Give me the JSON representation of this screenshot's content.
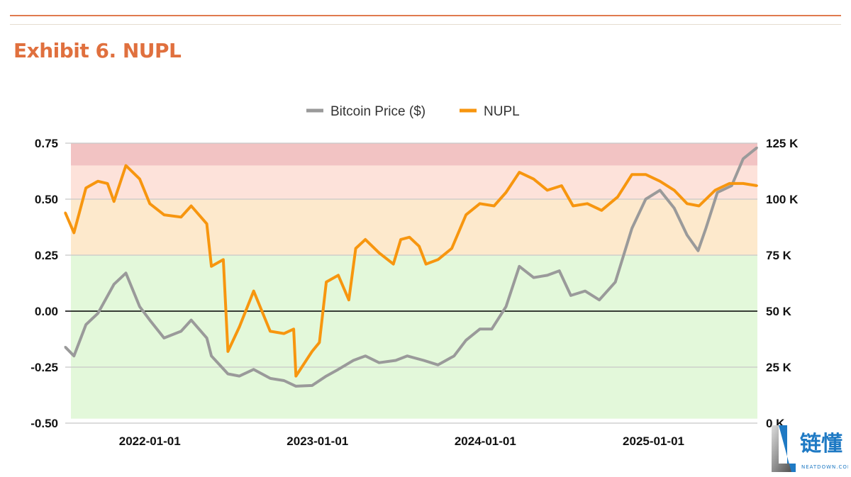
{
  "title": "Exhibit 6. NUPL",
  "colors": {
    "accent": "#e0703e",
    "nupl": "#f7960f",
    "price": "#9a9a9a"
  },
  "watermark": {
    "text": "链懂",
    "sub": "NEATDOWN.COM"
  },
  "chart_data": {
    "type": "line",
    "title": "",
    "legend": {
      "position": "top-center",
      "entries": [
        "Bitcoin Price ($)",
        "NUPL"
      ]
    },
    "x_axis": {
      "type": "date",
      "range": [
        "2021-07-01",
        "2025-08-15"
      ],
      "ticks": [
        "2022-01-01",
        "2023-01-01",
        "2024-01-01",
        "2025-01-01"
      ]
    },
    "y_left": {
      "label": "",
      "range": [
        -0.5,
        0.75
      ],
      "ticks": [
        "0.75",
        "0.50",
        "0.25",
        "0.00",
        "-0.25",
        "-0.50"
      ],
      "tick_values": [
        0.75,
        0.5,
        0.25,
        0,
        -0.25,
        -0.5
      ]
    },
    "y_right": {
      "label": "",
      "range": [
        0,
        125000
      ],
      "ticks": [
        "125 K",
        "100 K",
        "75 K",
        "50 K",
        "25 K",
        "0 K"
      ],
      "tick_values": [
        125000,
        100000,
        75000,
        50000,
        25000,
        0
      ]
    },
    "grid": true,
    "zones": [
      {
        "from": 0.65,
        "to": 0.75,
        "color": "#f2c3c3"
      },
      {
        "from": 0.5,
        "to": 0.65,
        "color": "#fde2da"
      },
      {
        "from": 0.25,
        "to": 0.5,
        "color": "#fde9cc"
      },
      {
        "from": -0.48,
        "to": 0.25,
        "color": "#e3f8da"
      }
    ],
    "series": [
      {
        "name": "Bitcoin Price ($)",
        "axis": "right",
        "color": "#9a9a9a",
        "x": [
          "2021-07-01",
          "2021-07-20",
          "2021-08-15",
          "2021-09-10",
          "2021-10-15",
          "2021-11-10",
          "2021-12-10",
          "2022-01-01",
          "2022-02-01",
          "2022-03-10",
          "2022-04-01",
          "2022-05-05",
          "2022-05-15",
          "2022-06-20",
          "2022-07-15",
          "2022-08-15",
          "2022-09-20",
          "2022-10-20",
          "2022-11-15",
          "2022-12-20",
          "2023-01-20",
          "2023-02-15",
          "2023-03-20",
          "2023-04-15",
          "2023-05-15",
          "2023-06-20",
          "2023-07-15",
          "2023-08-20",
          "2023-09-20",
          "2023-10-25",
          "2023-11-20",
          "2023-12-20",
          "2024-01-15",
          "2024-02-15",
          "2024-03-15",
          "2024-04-15",
          "2024-05-15",
          "2024-06-10",
          "2024-07-05",
          "2024-08-05",
          "2024-09-05",
          "2024-10-10",
          "2024-11-15",
          "2024-12-15",
          "2025-01-15",
          "2025-02-15",
          "2025-03-15",
          "2025-04-08",
          "2025-04-25",
          "2025-05-20",
          "2025-06-20",
          "2025-07-15",
          "2025-08-14"
        ],
        "values": [
          34000,
          30000,
          44000,
          49000,
          62000,
          67000,
          52000,
          46000,
          38000,
          41000,
          46000,
          38000,
          30000,
          22000,
          21000,
          24000,
          20000,
          19000,
          16500,
          16800,
          21000,
          24000,
          28000,
          30000,
          27000,
          28000,
          30000,
          28000,
          26000,
          30000,
          37000,
          42000,
          42000,
          52000,
          70000,
          65000,
          66000,
          68000,
          57000,
          59000,
          55000,
          63000,
          87000,
          100000,
          104000,
          96000,
          84000,
          77000,
          87000,
          103000,
          106000,
          118000,
          123000
        ]
      },
      {
        "name": "NUPL",
        "axis": "left",
        "color": "#f7960f",
        "x": [
          "2021-07-01",
          "2021-07-20",
          "2021-08-15",
          "2021-09-10",
          "2021-10-01",
          "2021-10-15",
          "2021-11-10",
          "2021-12-10",
          "2022-01-01",
          "2022-02-01",
          "2022-03-10",
          "2022-04-01",
          "2022-05-05",
          "2022-05-15",
          "2022-06-10",
          "2022-06-20",
          "2022-07-15",
          "2022-08-15",
          "2022-09-20",
          "2022-10-20",
          "2022-11-10",
          "2022-11-15",
          "2022-12-20",
          "2023-01-05",
          "2023-01-20",
          "2023-02-15",
          "2023-03-10",
          "2023-03-25",
          "2023-04-15",
          "2023-05-15",
          "2023-06-15",
          "2023-07-01",
          "2023-07-20",
          "2023-08-10",
          "2023-08-25",
          "2023-09-20",
          "2023-10-20",
          "2023-11-20",
          "2023-12-20",
          "2024-01-20",
          "2024-02-15",
          "2024-03-15",
          "2024-04-15",
          "2024-05-15",
          "2024-06-15",
          "2024-07-10",
          "2024-08-10",
          "2024-09-10",
          "2024-10-15",
          "2024-11-15",
          "2024-12-15",
          "2025-01-15",
          "2025-02-15",
          "2025-03-15",
          "2025-04-10",
          "2025-05-15",
          "2025-06-15",
          "2025-07-15",
          "2025-08-14"
        ],
        "values": [
          0.44,
          0.35,
          0.55,
          0.58,
          0.57,
          0.49,
          0.65,
          0.59,
          0.48,
          0.43,
          0.42,
          0.47,
          0.39,
          0.2,
          0.23,
          -0.18,
          -0.07,
          0.09,
          -0.09,
          -0.1,
          -0.08,
          -0.29,
          -0.18,
          -0.14,
          0.13,
          0.16,
          0.05,
          0.28,
          0.32,
          0.26,
          0.21,
          0.32,
          0.33,
          0.29,
          0.21,
          0.23,
          0.28,
          0.43,
          0.48,
          0.47,
          0.53,
          0.62,
          0.59,
          0.54,
          0.56,
          0.47,
          0.48,
          0.45,
          0.51,
          0.61,
          0.61,
          0.58,
          0.54,
          0.48,
          0.47,
          0.54,
          0.57,
          0.57,
          0.56
        ]
      }
    ]
  }
}
